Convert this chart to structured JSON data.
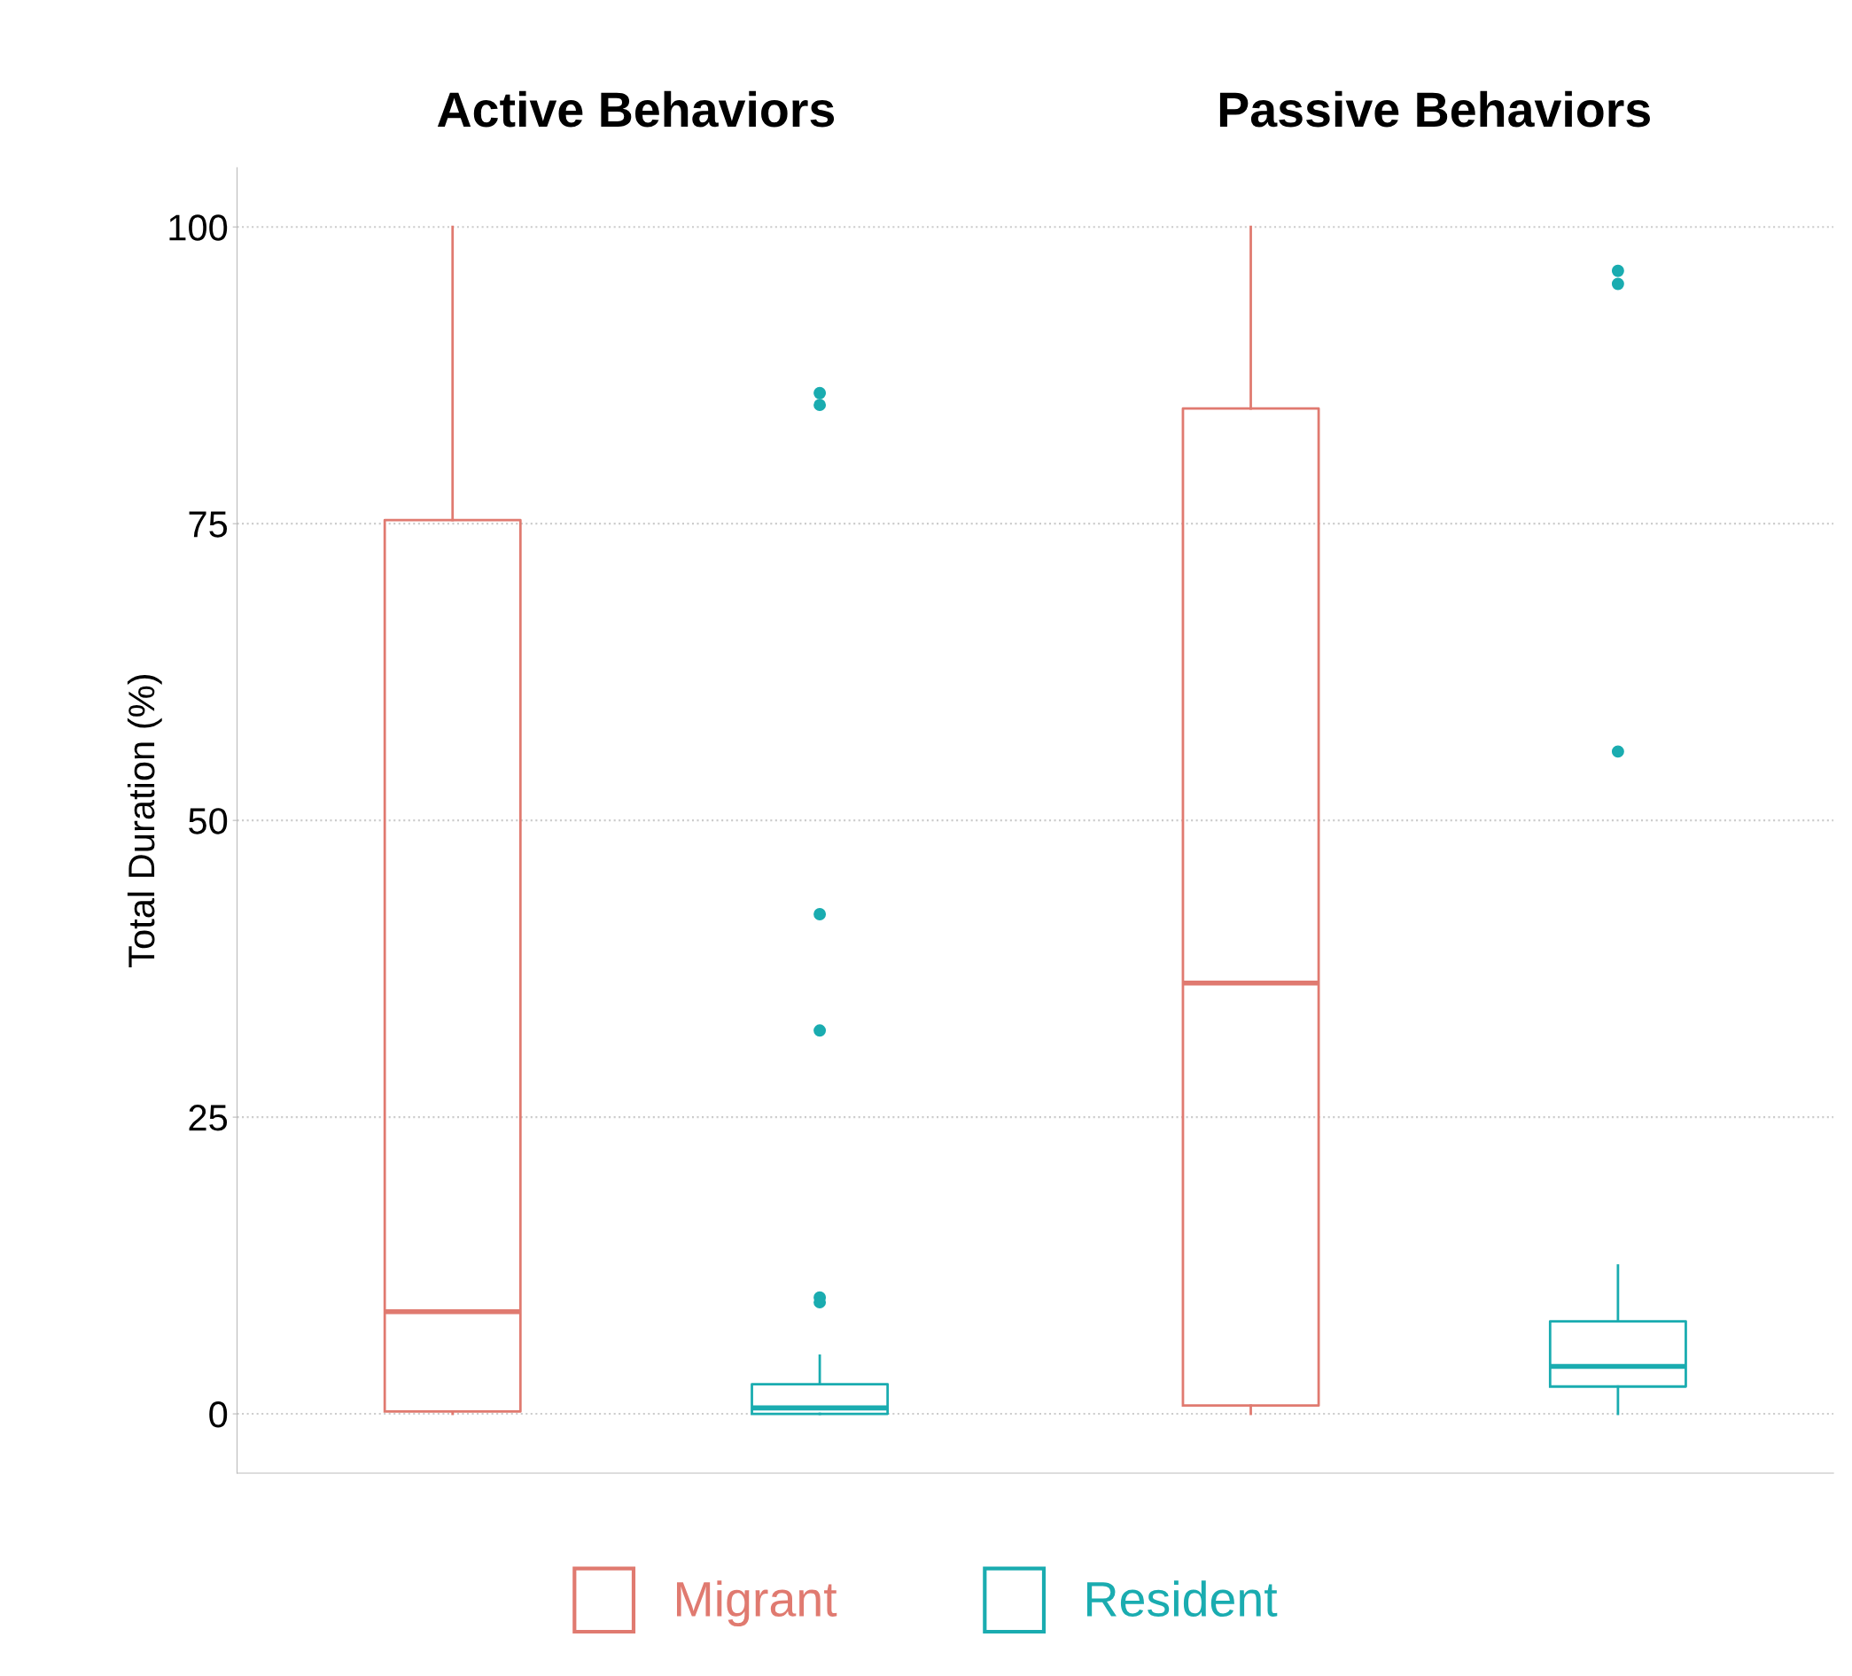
{
  "chart_data": {
    "type": "box",
    "ylabel": "Total Duration (%)",
    "categories": [
      "Active Behaviors",
      "Passive Behaviors"
    ],
    "ylim": [
      -5,
      105
    ],
    "yticks": [
      0,
      25,
      50,
      75,
      100
    ],
    "grid": "y",
    "legend": "bottom",
    "series": [
      {
        "name": "Migrant",
        "color": "#e07a70",
        "boxes": [
          {
            "low": 0,
            "q1": 0.2,
            "median": 8.6,
            "q3": 75.3,
            "high": 100
          },
          {
            "low": 0,
            "q1": 0.7,
            "median": 36.3,
            "q3": 84.7,
            "high": 100
          }
        ]
      },
      {
        "name": "Resident",
        "color": "#1aacb0",
        "boxes": [
          {
            "low": 0,
            "q1": 0,
            "median": 0.5,
            "q3": 2.5,
            "high": 4.9,
            "outliers": [
              86,
              85,
              42.1,
              32.3,
              9.8,
              9.4
            ]
          },
          {
            "low": 0,
            "q1": 2.3,
            "median": 4,
            "q3": 7.8,
            "high": 12.5,
            "outliers": [
              96.3,
              95.2,
              55.8
            ]
          }
        ]
      }
    ]
  }
}
